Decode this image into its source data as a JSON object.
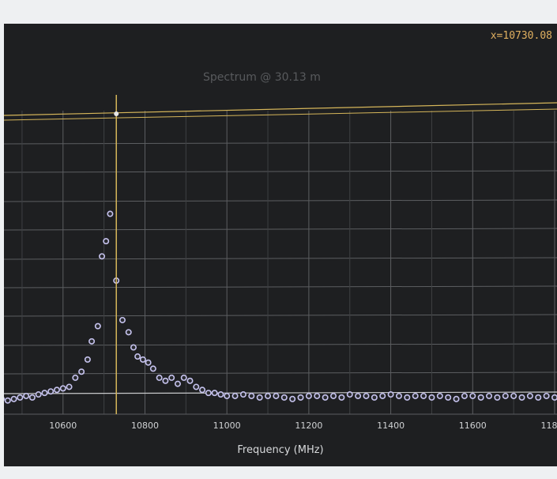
{
  "cursor_readout": "x=10730.08",
  "chart_data": {
    "type": "scatter",
    "title": "Spectrum @ 30.13 m",
    "xlabel": "Frequency (MHz)",
    "ylabel": "",
    "xlim": [
      10450,
      11800
    ],
    "ylim": [
      0,
      1
    ],
    "xticks": [
      10600,
      10800,
      11000,
      11200,
      11400,
      11600,
      11800
    ],
    "xtick_labels": [
      "10600",
      "10800",
      "11000",
      "11200",
      "11400",
      "11600",
      "11800"
    ],
    "grid": true,
    "cursor_x": 10730.08,
    "colors": {
      "background": "#1e1f21",
      "grid": "#5c5e61",
      "points": "#c6c3ee",
      "cursor": "#d6b65a"
    },
    "series": [
      {
        "x": [
          10450,
          10465,
          10480,
          10495,
          10510,
          10525,
          10540,
          10555,
          10570,
          10585,
          10600,
          10615,
          10630,
          10645,
          10660,
          10670,
          10685,
          10695,
          10705,
          10715,
          10730,
          10745,
          10760,
          10772,
          10782,
          10795,
          10808,
          10820,
          10835,
          10850,
          10865,
          10880,
          10895,
          10910,
          10925,
          10940,
          10955,
          10970,
          10985,
          11000,
          11020,
          11040,
          11060,
          11080,
          11100,
          11120,
          11140,
          11160,
          11180,
          11200,
          11220,
          11240,
          11260,
          11280,
          11300,
          11320,
          11340,
          11360,
          11380,
          11400,
          11420,
          11440,
          11460,
          11480,
          11500,
          11520,
          11540,
          11560,
          11580,
          11600,
          11620,
          11640,
          11660,
          11680,
          11700,
          11720,
          11740,
          11760,
          11780,
          11800
        ],
        "y": [
          0.05,
          0.045,
          0.05,
          0.055,
          0.06,
          0.055,
          0.065,
          0.07,
          0.075,
          0.08,
          0.085,
          0.09,
          0.12,
          0.14,
          0.18,
          0.24,
          0.29,
          0.52,
          0.57,
          0.66,
          0.44,
          0.31,
          0.27,
          0.22,
          0.19,
          0.18,
          0.17,
          0.15,
          0.12,
          0.11,
          0.12,
          0.1,
          0.12,
          0.11,
          0.09,
          0.08,
          0.07,
          0.07,
          0.065,
          0.06,
          0.06,
          0.065,
          0.06,
          0.055,
          0.06,
          0.06,
          0.055,
          0.05,
          0.055,
          0.06,
          0.06,
          0.055,
          0.06,
          0.055,
          0.065,
          0.06,
          0.06,
          0.055,
          0.06,
          0.065,
          0.06,
          0.055,
          0.06,
          0.06,
          0.055,
          0.06,
          0.055,
          0.05,
          0.06,
          0.06,
          0.055,
          0.06,
          0.055,
          0.06,
          0.06,
          0.055,
          0.06,
          0.055,
          0.06,
          0.055
        ]
      }
    ]
  }
}
